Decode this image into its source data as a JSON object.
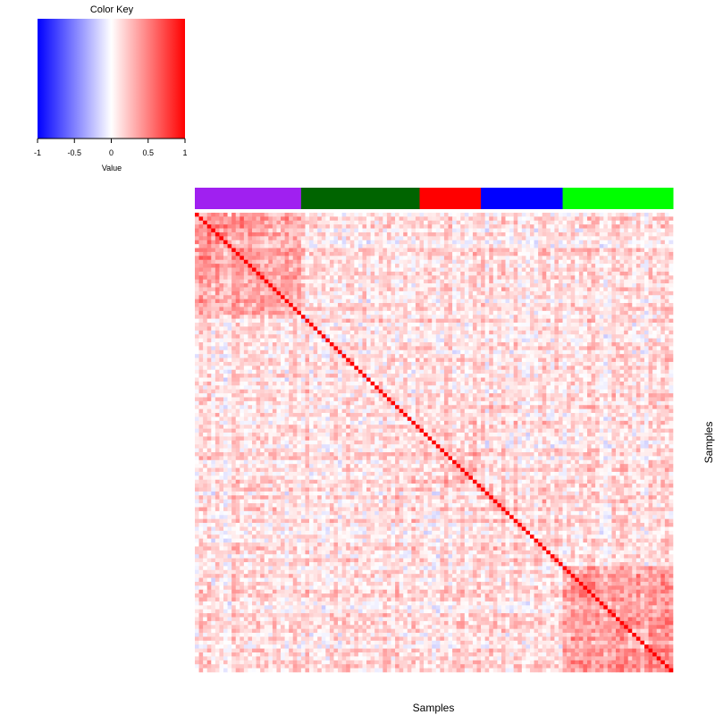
{
  "chart_data": {
    "type": "heatmap",
    "xlabel": "Samples",
    "ylabel": "Samples",
    "color_key": {
      "title": "Color Key",
      "label": "Value",
      "range": [
        -1,
        1
      ],
      "ticks": [
        {
          "value": -1,
          "label": "-1"
        },
        {
          "value": -0.5,
          "label": "-0.5"
        },
        {
          "value": 0,
          "label": "0"
        },
        {
          "value": 0.5,
          "label": "0.5"
        },
        {
          "value": 1,
          "label": "1"
        }
      ],
      "colors": {
        "low": "#0000ff",
        "mid": "#ffffff",
        "high": "#ff0000"
      }
    },
    "sample_count": 117,
    "group_bar": [
      {
        "color": "#a020f0",
        "count": 26
      },
      {
        "color": "#006400",
        "count": 29
      },
      {
        "color": "#ff0000",
        "count": 15
      },
      {
        "color": "#0000ff",
        "count": 20
      },
      {
        "color": "#00ff00",
        "count": 27
      }
    ],
    "diagonal_value": 1,
    "within_group_mean": [
      0.35,
      0.12,
      0.22,
      0.15,
      0.38
    ],
    "between_group_mean": 0.12,
    "value_spread": 0.18,
    "value_pattern_seed": 7
  }
}
